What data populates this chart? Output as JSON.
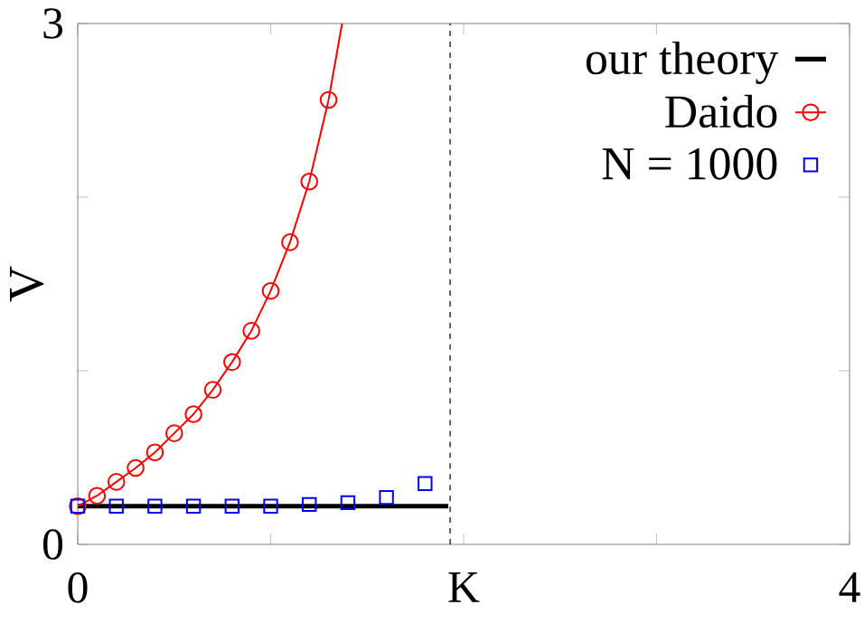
{
  "chart_data": {
    "type": "line",
    "ylabel": "V",
    "xlim": [
      0,
      4
    ],
    "ylim": [
      0,
      3
    ],
    "xticks": [
      0,
      {
        "value": 1,
        "label": null
      },
      {
        "value": 2,
        "label": "K"
      },
      {
        "value": 3,
        "label": null
      },
      4
    ],
    "yticks": [
      0,
      {
        "value": 1,
        "label": null
      },
      {
        "value": 2,
        "label": null
      },
      3
    ],
    "grid": false,
    "legend": "top right",
    "ref_lines": [
      {
        "axis": "x",
        "value": 1.93,
        "line_style": "dashed",
        "color": "#000000"
      }
    ],
    "series": [
      {
        "name": "our theory",
        "color": "#000000",
        "marker": "none",
        "line_style": "solid",
        "x": [
          0,
          1.92
        ],
        "values": [
          0.22,
          0.22
        ]
      },
      {
        "name": "Daido",
        "color": "#ff0000",
        "marker": "circle",
        "line_style": "solid",
        "x": [
          0,
          0.1,
          0.2,
          0.3,
          0.4,
          0.5,
          0.6,
          0.7,
          0.8,
          0.9,
          1.0,
          1.1,
          1.2,
          1.3
        ],
        "values": [
          0.22,
          0.28,
          0.36,
          0.44,
          0.53,
          0.64,
          0.75,
          0.89,
          1.05,
          1.23,
          1.46,
          1.74,
          2.09,
          2.56
        ]
      },
      {
        "color": "#ff0000",
        "marker": "none",
        "line_style": "solid",
        "x": [
          1.3,
          1.37
        ],
        "values": [
          2.56,
          3
        ]
      },
      {
        "name": "N = 1000",
        "type": "scatter",
        "color": "#0000ff",
        "marker": "square",
        "x": [
          0,
          0.2,
          0.4,
          0.6,
          0.8,
          1.0,
          1.2,
          1.4,
          1.6,
          1.8
        ],
        "values": [
          0.22,
          0.22,
          0.22,
          0.22,
          0.22,
          0.22,
          0.23,
          0.24,
          0.27,
          0.35
        ]
      }
    ]
  }
}
